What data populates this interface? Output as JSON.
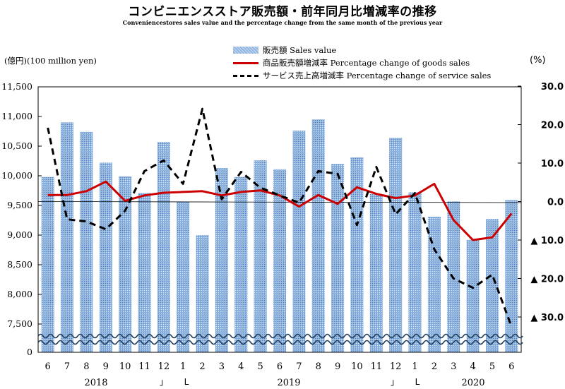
{
  "chart_data": {
    "type": "bar",
    "title": "コンビニエンスストア販売額・前年同月比増減率の推移",
    "subtitle": "Conveniencestores sales value and the percentage change from the same month of the previous year",
    "ylabel": "(億円)(100 million yen)",
    "y2label": "(%)",
    "categories": [
      "6",
      "7",
      "8",
      "9",
      "10",
      "11",
      "12",
      "1",
      "2",
      "3",
      "4",
      "5",
      "6",
      "7",
      "8",
      "9",
      "10",
      "11",
      "12",
      "1",
      "2",
      "3",
      "4",
      "5",
      "6"
    ],
    "year_labels": [
      "2018",
      "2019",
      "2020"
    ],
    "year_separators": [
      "」",
      "L",
      "」",
      "L"
    ],
    "ylim": [
      0,
      11500
    ],
    "y_ticks": [
      "0",
      "7,500",
      "8,000",
      "8,500",
      "9,000",
      "9,500",
      "10,000",
      "10,500",
      "11,000",
      "11,500"
    ],
    "y2lim": [
      -37.0,
      30.0
    ],
    "y2_ticks": [
      "30.0",
      "20.0",
      "10.0",
      "0.0",
      "▲ 10.0",
      "▲ 20.0",
      "▲ 30.0"
    ],
    "legend_position": "top-center",
    "series": [
      {
        "name": "販売額 Sales value",
        "type": "bar",
        "axis": "left",
        "color": "#8fb4e0",
        "values": [
          9980,
          10900,
          10740,
          10220,
          9990,
          9710,
          10570,
          9560,
          9000,
          10130,
          9980,
          10260,
          10110,
          10760,
          10950,
          10200,
          10310,
          9690,
          10640,
          9720,
          9310,
          9570,
          8920,
          9270,
          9590
        ]
      },
      {
        "name": "商品販売額増減率 Percentage change of goods sales",
        "type": "line",
        "axis": "right",
        "color": "#cc0000",
        "values": [
          1.7,
          1.7,
          2.7,
          5.2,
          0.2,
          1.6,
          2.3,
          2.5,
          2.7,
          1.6,
          2.5,
          2.9,
          1.6,
          -1.3,
          1.7,
          -0.6,
          3.7,
          2.0,
          0.9,
          1.6,
          4.6,
          -4.8,
          -10.0,
          -9.3,
          -3.1
        ]
      },
      {
        "name": "サービス売上高増減率 Percentage change of service sales",
        "type": "line",
        "axis": "right",
        "color": "#000000",
        "values": [
          19.2,
          -4.6,
          -5.2,
          -7.2,
          -2.4,
          7.9,
          10.7,
          4.6,
          24.1,
          0.6,
          7.7,
          3.6,
          1.6,
          -0.3,
          7.9,
          7.2,
          -6.1,
          9.0,
          -3.3,
          2.2,
          -12.4,
          -20.0,
          -22.4,
          -19.0,
          -32.5
        ]
      }
    ]
  }
}
